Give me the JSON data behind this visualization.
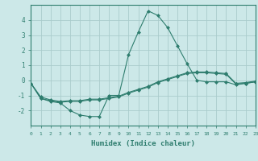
{
  "x": [
    0,
    1,
    2,
    3,
    4,
    5,
    6,
    7,
    8,
    9,
    10,
    11,
    12,
    13,
    14,
    15,
    16,
    17,
    18,
    19,
    20,
    21,
    22,
    23
  ],
  "line1": [
    -0.2,
    -1.2,
    -1.4,
    -1.5,
    -2.0,
    -2.3,
    -2.4,
    -2.4,
    -1.0,
    -1.0,
    1.7,
    3.2,
    4.6,
    4.3,
    3.5,
    2.3,
    1.1,
    0.0,
    -0.1,
    -0.1,
    -0.1,
    -0.3,
    -0.2,
    -0.1
  ],
  "line2": [
    -0.2,
    -1.2,
    -1.35,
    -1.45,
    -1.4,
    -1.4,
    -1.3,
    -1.3,
    -1.2,
    -1.1,
    -0.85,
    -0.65,
    -0.45,
    -0.15,
    0.05,
    0.25,
    0.45,
    0.5,
    0.5,
    0.45,
    0.4,
    -0.25,
    -0.2,
    -0.1
  ],
  "line3": [
    -0.2,
    -1.1,
    -1.3,
    -1.4,
    -1.35,
    -1.35,
    -1.25,
    -1.25,
    -1.15,
    -1.05,
    -0.8,
    -0.6,
    -0.4,
    -0.1,
    0.1,
    0.3,
    0.5,
    0.55,
    0.55,
    0.5,
    0.45,
    -0.2,
    -0.15,
    -0.05
  ],
  "color": "#2e7d6e",
  "bg_color": "#cce8e8",
  "grid_color": "#aacccc",
  "xlabel": "Humidex (Indice chaleur)",
  "xlim": [
    0,
    23
  ],
  "ylim": [
    -3,
    5
  ],
  "yticks": [
    -2,
    -1,
    0,
    1,
    2,
    3,
    4
  ],
  "xticks": [
    0,
    1,
    2,
    3,
    4,
    5,
    6,
    7,
    8,
    9,
    10,
    11,
    12,
    13,
    14,
    15,
    16,
    17,
    18,
    19,
    20,
    21,
    22,
    23
  ],
  "marker": "D",
  "markersize": 2.0,
  "linewidth": 0.8
}
